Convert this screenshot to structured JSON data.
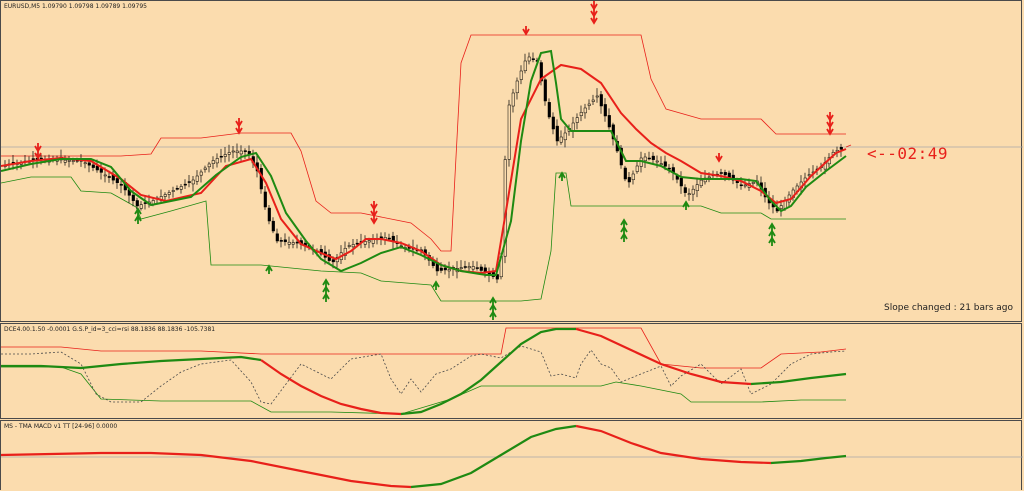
{
  "main_pane": {
    "title": "EURUSD,M5  1.09790 1.09798 1.09789 1.09795",
    "timer": "<--02:49",
    "slope_text": "Slope changed : 21 bars ago"
  },
  "dce_pane": {
    "title": "DCE4.00.1.50 -0.0001  G.S.P_id=3_cci=rsi 88.1836 88.1836 -105.7381"
  },
  "macd_pane": {
    "title": "MS - TMA MACD v1 TT [24-96] 0.0000"
  },
  "colors": {
    "background": "#fbdcae",
    "bull_line": "#1e8a12",
    "bear_line": "#e8201a",
    "candle": "#000000"
  },
  "icons": {
    "sell_arrow": "red-double-down-arrow",
    "buy_arrow": "green-double-up-arrow"
  }
}
